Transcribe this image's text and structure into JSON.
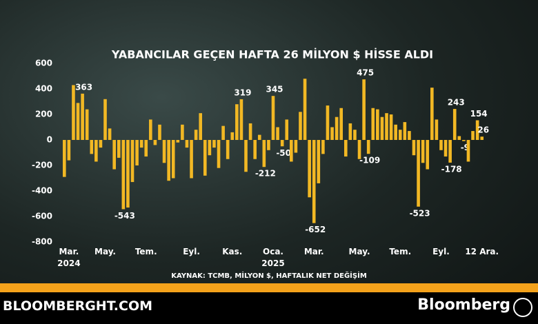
{
  "chart_data": {
    "type": "bar",
    "title": "YABANCILAR GEÇEN HAFTA 26 MİLYON $ HİSSE ALDI",
    "source": "KAYNAK: TCMB, MİLYON $, HAFTALIK NET DEĞİŞİM",
    "site": "BLOOMBERGHT.COM",
    "brand": "Bloomberg",
    "color": "#f2b824",
    "grid": false,
    "ylim": [
      -800,
      600
    ],
    "yticks": [
      -800,
      -600,
      -400,
      -200,
      0,
      200,
      400,
      600
    ],
    "categories": [
      null,
      "Mar.\n2024",
      null,
      null,
      null,
      null,
      null,
      null,
      null,
      "May.",
      null,
      null,
      null,
      null,
      null,
      null,
      null,
      null,
      "Tem.",
      null,
      null,
      null,
      null,
      null,
      null,
      null,
      null,
      null,
      "Eyl.",
      null,
      null,
      null,
      null,
      null,
      null,
      null,
      null,
      "Kas.",
      null,
      null,
      null,
      null,
      null,
      null,
      null,
      null,
      "Oca.\n2025",
      null,
      null,
      null,
      null,
      null,
      null,
      null,
      null,
      "Mar.",
      null,
      null,
      null,
      null,
      null,
      null,
      null,
      null,
      null,
      "May.",
      null,
      null,
      null,
      null,
      null,
      null,
      null,
      null,
      "Tem.",
      null,
      null,
      null,
      null,
      null,
      null,
      null,
      null,
      "Eyl.",
      null,
      null,
      null,
      null,
      null,
      null,
      null,
      null,
      "12 Ara."
    ],
    "values": [
      -290,
      -160,
      430,
      290,
      363,
      240,
      -110,
      -170,
      -60,
      320,
      90,
      -230,
      -140,
      -543,
      -530,
      -330,
      -200,
      -60,
      -130,
      160,
      -40,
      120,
      -180,
      -320,
      -300,
      -20,
      120,
      -60,
      -300,
      80,
      210,
      -280,
      -120,
      -60,
      -220,
      110,
      -150,
      60,
      280,
      319,
      -250,
      130,
      -150,
      40,
      -212,
      -80,
      345,
      100,
      -50,
      160,
      -170,
      -100,
      220,
      480,
      -450,
      -652,
      -340,
      -110,
      270,
      100,
      180,
      250,
      -130,
      130,
      80,
      -150,
      475,
      -109,
      250,
      240,
      180,
      210,
      200,
      120,
      80,
      140,
      70,
      -120,
      -523,
      -180,
      -230,
      410,
      160,
      -80,
      -130,
      -178,
      243,
      30,
      -9,
      -170,
      70,
      154,
      26
    ],
    "value_labels": [
      null,
      null,
      null,
      null,
      "363",
      null,
      null,
      null,
      null,
      null,
      null,
      null,
      null,
      "-543",
      null,
      null,
      null,
      null,
      null,
      null,
      null,
      null,
      null,
      null,
      null,
      null,
      null,
      null,
      null,
      null,
      null,
      null,
      null,
      null,
      null,
      null,
      null,
      null,
      null,
      "319",
      null,
      null,
      null,
      null,
      "-212",
      null,
      "345",
      null,
      "-50",
      null,
      null,
      null,
      null,
      null,
      null,
      "-652",
      null,
      null,
      null,
      null,
      null,
      null,
      null,
      null,
      null,
      null,
      "475",
      "-109",
      null,
      null,
      null,
      null,
      null,
      null,
      null,
      null,
      null,
      null,
      "-523",
      null,
      null,
      null,
      null,
      null,
      null,
      "-178",
      "243",
      null,
      "-9",
      null,
      null,
      "154",
      "26"
    ]
  }
}
